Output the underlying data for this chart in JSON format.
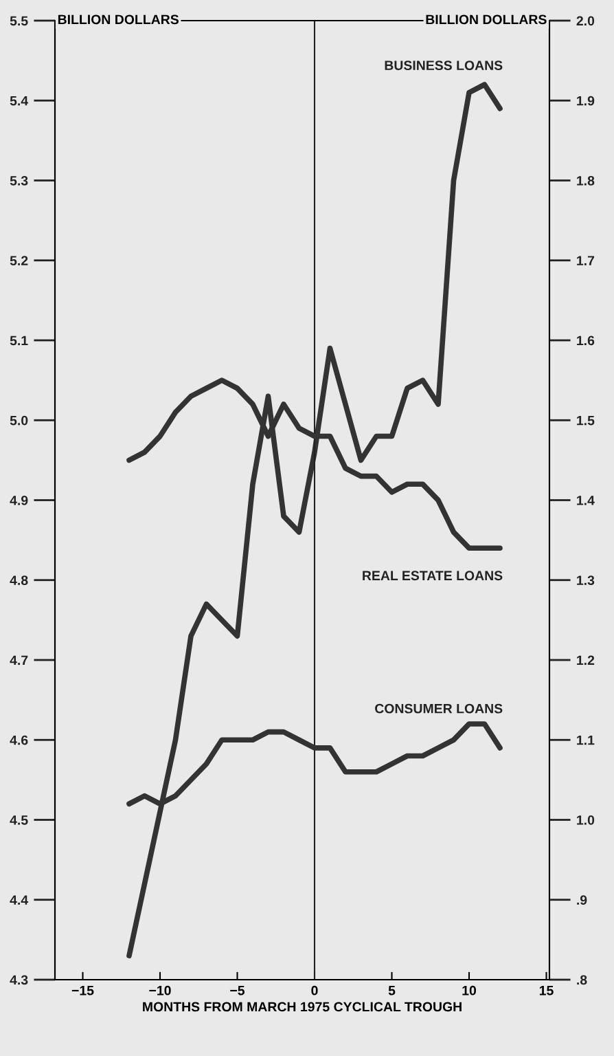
{
  "chart_data": {
    "type": "line",
    "x": [
      -12,
      -11,
      -10,
      -9,
      -8,
      -7,
      -6,
      -5,
      -4,
      -3,
      -2,
      -1,
      0,
      1,
      2,
      3,
      4,
      5,
      6,
      7,
      8,
      9,
      10,
      11,
      12
    ],
    "series": [
      {
        "name": "BUSINESS LOANS",
        "color": "#333333",
        "axis": "y",
        "values": [
          4.33,
          4.42,
          4.51,
          4.6,
          4.73,
          4.77,
          4.75,
          4.73,
          4.92,
          5.03,
          4.88,
          4.86,
          4.96,
          5.09,
          5.02,
          4.95,
          4.98,
          4.98,
          5.04,
          5.05,
          5.02,
          5.3,
          5.41,
          5.42,
          5.39
        ]
      },
      {
        "name": "REAL ESTATE LOANS",
        "color": "#333333",
        "axis": "y2",
        "values": [
          1.45,
          1.46,
          1.48,
          1.51,
          1.53,
          1.54,
          1.55,
          1.54,
          1.52,
          1.48,
          1.52,
          1.49,
          1.48,
          1.48,
          1.44,
          1.43,
          1.43,
          1.41,
          1.42,
          1.42,
          1.4,
          1.36,
          1.34,
          1.34,
          1.34
        ]
      },
      {
        "name": "CONSUMER LOANS",
        "color": "#333333",
        "axis": "y2",
        "values": [
          1.02,
          1.03,
          1.02,
          1.03,
          1.05,
          1.07,
          1.1,
          1.1,
          1.1,
          1.11,
          1.11,
          1.1,
          1.09,
          1.09,
          1.06,
          1.06,
          1.06,
          1.07,
          1.08,
          1.08,
          1.09,
          1.1,
          1.12,
          1.12,
          1.09
        ]
      }
    ],
    "xlabel": "MONTHS FROM MARCH 1975 CYCLICAL TROUGH",
    "ylabel": "BILLION DOLLARS",
    "y2label": "BILLION DOLLARS",
    "xlim": [
      -16.8,
      15.2
    ],
    "xticks": [
      {
        "value": -15,
        "label": "−15"
      },
      {
        "value": -10,
        "label": "−10"
      },
      {
        "value": -5,
        "label": "−5"
      },
      0,
      5,
      10,
      15
    ],
    "ylim": [
      4.3,
      5.5
    ],
    "yticks": [
      4.3,
      4.4,
      4.5,
      4.6,
      4.7,
      4.8,
      4.9,
      {
        "value": 5.0,
        "label": "5.0"
      },
      5.1,
      5.2,
      5.3,
      5.4,
      5.5
    ],
    "y2lim": [
      0.8,
      2.0
    ],
    "y2ticks": [
      {
        "value": 0.8,
        "label": ".8"
      },
      {
        "value": 0.9,
        "label": ".9"
      },
      {
        "value": 1.0,
        "label": "1.0"
      },
      1.1,
      1.2,
      1.3,
      1.4,
      1.5,
      1.6,
      1.7,
      1.8,
      1.9,
      {
        "value": 2.0,
        "label": "2.0"
      }
    ],
    "ref_lines": [
      {
        "axis": "x",
        "value": 0,
        "color": "#222222",
        "line_style": "solid"
      }
    ],
    "grid": false,
    "legend": false,
    "marker": "none",
    "line_style": "solid"
  }
}
